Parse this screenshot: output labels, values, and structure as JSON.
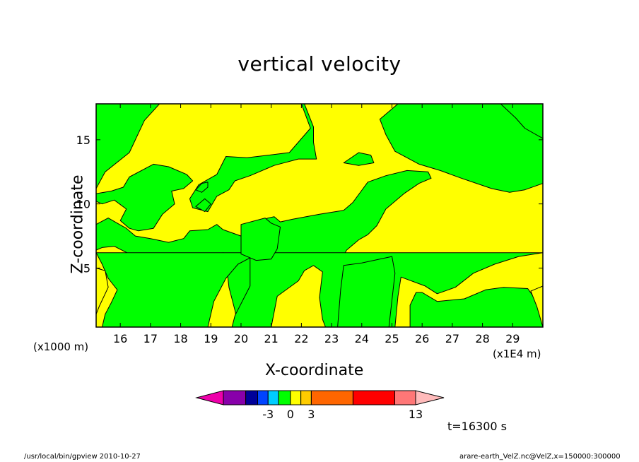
{
  "chart_data": {
    "type": "heatmap",
    "title": "vertical velocity",
    "xlabel": "X-coordinate",
    "ylabel": "Z-coordinate",
    "x_unit_left": "(x1000 m)",
    "x_unit_right": "(x1E4 m)",
    "xlim": [
      15.2,
      30.0
    ],
    "ylim": [
      0.4,
      17.8
    ],
    "x_ticks": [
      16,
      17,
      18,
      19,
      20,
      21,
      22,
      23,
      24,
      25,
      26,
      27,
      28,
      29
    ],
    "y_ticks": [
      5,
      10,
      15
    ],
    "colorbar": {
      "levels": [
        {
          "color": "#8800aa"
        },
        {
          "color": "#000099"
        },
        {
          "color": "#0044ff"
        },
        {
          "color": "#00ccff"
        },
        {
          "color": "#00ff00"
        },
        {
          "color": "#ffff00"
        },
        {
          "color": "#ffcc00"
        },
        {
          "color": "#ff6600"
        },
        {
          "color": "#ff0000"
        },
        {
          "color": "#ff7777"
        }
      ],
      "under_color": "#ee00aa",
      "over_color": "#ffbbbb",
      "labels": [
        {
          "text": "-3",
          "after_index": 2
        },
        {
          "text": "0",
          "after_index": 4
        },
        {
          "text": "3",
          "after_index": 6
        },
        {
          "text": "13",
          "after_index": 9
        }
      ]
    },
    "field_colors": {
      "negative_small": "#00ff00",
      "positive_small": "#ffff00"
    },
    "regions": [
      {
        "value": "negative_small",
        "points": [
          [
            15.2,
            17.8
          ],
          [
            17.3,
            17.8
          ],
          [
            16.8,
            16.5
          ],
          [
            16.3,
            14.0
          ],
          [
            15.5,
            12.5
          ],
          [
            15.2,
            11.2
          ]
        ]
      },
      {
        "value": "negative_small",
        "points": [
          [
            15.2,
            10.8
          ],
          [
            15.7,
            11.0
          ],
          [
            16.1,
            11.3
          ],
          [
            16.3,
            12.1
          ],
          [
            17.1,
            13.1
          ],
          [
            17.6,
            12.9
          ],
          [
            18.2,
            12.3
          ],
          [
            18.4,
            11.8
          ],
          [
            18.1,
            11.2
          ],
          [
            17.7,
            11.0
          ],
          [
            17.8,
            10.0
          ],
          [
            17.4,
            9.2
          ],
          [
            17.1,
            8.1
          ],
          [
            16.6,
            7.9
          ],
          [
            16.3,
            8.1
          ],
          [
            16.0,
            8.7
          ],
          [
            16.2,
            9.6
          ],
          [
            15.8,
            10.3
          ],
          [
            15.4,
            10.0
          ],
          [
            15.2,
            10.2
          ]
        ]
      },
      {
        "value": "negative_small",
        "points": [
          [
            18.1,
            17.8
          ],
          [
            22.0,
            17.8
          ],
          [
            22.3,
            15.9
          ],
          [
            21.6,
            14.0
          ],
          [
            20.2,
            13.6
          ],
          [
            19.5,
            13.7
          ],
          [
            19.2,
            12.3
          ],
          [
            18.6,
            11.5
          ],
          [
            18.3,
            10.4
          ],
          [
            18.4,
            9.7
          ],
          [
            18.9,
            9.4
          ],
          [
            19.2,
            10.6
          ],
          [
            19.6,
            11.1
          ],
          [
            19.8,
            11.8
          ],
          [
            20.3,
            12.2
          ],
          [
            21.1,
            13.0
          ],
          [
            21.9,
            13.5
          ],
          [
            22.5,
            13.5
          ],
          [
            22.4,
            14.8
          ],
          [
            22.4,
            16.0
          ],
          [
            22.1,
            17.8
          ]
        ]
      },
      {
        "value": "negative_small",
        "points": [
          [
            25.2,
            17.8
          ],
          [
            30.0,
            17.8
          ],
          [
            30.0,
            11.6
          ],
          [
            29.4,
            11.1
          ],
          [
            28.9,
            10.9
          ],
          [
            28.3,
            11.2
          ],
          [
            27.3,
            12.0
          ],
          [
            26.6,
            12.6
          ],
          [
            25.9,
            13.1
          ],
          [
            25.1,
            14.1
          ],
          [
            24.8,
            15.4
          ],
          [
            24.6,
            16.6
          ]
        ]
      },
      {
        "value": "negative_small",
        "points": [
          [
            28.6,
            17.8
          ],
          [
            30.0,
            17.8
          ],
          [
            30.0,
            15.1
          ],
          [
            29.4,
            15.9
          ],
          [
            29.1,
            16.7
          ]
        ]
      },
      {
        "value": "negative_small",
        "points": [
          [
            23.4,
            13.2
          ],
          [
            23.9,
            14.0
          ],
          [
            24.3,
            13.8
          ],
          [
            24.4,
            13.2
          ],
          [
            23.9,
            13.0
          ]
        ]
      },
      {
        "value": "negative_small",
        "points": [
          [
            15.2,
            8.4
          ],
          [
            15.6,
            8.9
          ],
          [
            15.9,
            8.5
          ],
          [
            16.2,
            8.1
          ],
          [
            16.5,
            7.5
          ],
          [
            17.0,
            7.3
          ],
          [
            17.6,
            7.0
          ],
          [
            18.1,
            7.3
          ],
          [
            18.3,
            7.9
          ],
          [
            18.9,
            8.0
          ],
          [
            19.2,
            8.4
          ],
          [
            19.4,
            8.0
          ],
          [
            20.0,
            7.5
          ],
          [
            20.1,
            8.3
          ],
          [
            20.9,
            8.9
          ],
          [
            21.1,
            9.0
          ],
          [
            21.3,
            8.6
          ],
          [
            21.7,
            8.8
          ],
          [
            22.6,
            9.2
          ],
          [
            23.4,
            9.5
          ],
          [
            23.7,
            10.1
          ],
          [
            24.2,
            11.7
          ],
          [
            24.8,
            12.2
          ],
          [
            25.5,
            12.6
          ],
          [
            26.2,
            12.5
          ],
          [
            26.3,
            12.0
          ],
          [
            25.9,
            11.6
          ],
          [
            25.4,
            10.8
          ],
          [
            24.8,
            9.6
          ],
          [
            24.5,
            8.3
          ],
          [
            24.2,
            7.6
          ],
          [
            23.9,
            7.2
          ],
          [
            23.5,
            6.4
          ],
          [
            23.3,
            5.6
          ],
          [
            23.1,
            5.2
          ],
          [
            22.5,
            5.7
          ],
          [
            22.1,
            5.1
          ],
          [
            21.6,
            4.5
          ],
          [
            21.1,
            4.2
          ],
          [
            20.6,
            3.4
          ],
          [
            20.4,
            2.6
          ],
          [
            20.3,
            1.7
          ],
          [
            20.1,
            0.4
          ],
          [
            19.9,
            0.4
          ],
          [
            19.8,
            1.7
          ],
          [
            19.6,
            3.5
          ],
          [
            19.5,
            5.6
          ],
          [
            19.4,
            6.2
          ],
          [
            18.9,
            5.1
          ],
          [
            18.6,
            4.4
          ],
          [
            17.8,
            4.6
          ],
          [
            17.1,
            4.8
          ],
          [
            16.7,
            5.4
          ],
          [
            16.3,
            6.1
          ],
          [
            15.8,
            6.7
          ],
          [
            15.4,
            6.6
          ],
          [
            15.2,
            6.4
          ]
        ]
      },
      {
        "value": "negative_small",
        "points": [
          [
            15.2,
            6.2
          ],
          [
            15.4,
            5.3
          ],
          [
            15.6,
            4.2
          ],
          [
            15.9,
            3.3
          ],
          [
            15.7,
            2.3
          ],
          [
            15.5,
            1.4
          ],
          [
            15.4,
            0.4
          ],
          [
            18.9,
            0.4
          ],
          [
            19.1,
            2.4
          ],
          [
            19.5,
            4.2
          ],
          [
            19.9,
            5.3
          ],
          [
            20.3,
            5.8
          ],
          [
            20.3,
            3.6
          ],
          [
            19.8,
            1.3
          ],
          [
            19.7,
            0.4
          ],
          [
            21.0,
            0.4
          ],
          [
            21.2,
            2.8
          ],
          [
            21.9,
            4.0
          ],
          [
            22.1,
            4.8
          ],
          [
            22.4,
            5.2
          ],
          [
            22.7,
            4.7
          ],
          [
            22.6,
            2.7
          ],
          [
            22.7,
            1.0
          ],
          [
            22.8,
            0.4
          ],
          [
            25.1,
            0.4
          ],
          [
            25.2,
            2.8
          ],
          [
            25.3,
            4.3
          ],
          [
            26.1,
            3.6
          ],
          [
            26.5,
            3.0
          ],
          [
            27.1,
            3.5
          ],
          [
            27.7,
            4.6
          ],
          [
            28.4,
            5.3
          ],
          [
            29.2,
            5.9
          ],
          [
            30.0,
            6.2
          ]
        ]
      },
      {
        "value": "negative_small",
        "points": [
          [
            20.0,
            8.4
          ],
          [
            20.8,
            8.9
          ],
          [
            21.0,
            8.5
          ],
          [
            21.3,
            8.2
          ],
          [
            21.2,
            6.5
          ],
          [
            21.0,
            5.7
          ],
          [
            20.5,
            5.6
          ],
          [
            20.0,
            6.1
          ],
          [
            20.0,
            7.0
          ]
        ]
      },
      {
        "value": "negative_small",
        "points": [
          [
            23.2,
            0.4
          ],
          [
            23.3,
            3.3
          ],
          [
            23.4,
            5.2
          ],
          [
            24.0,
            5.4
          ],
          [
            24.6,
            5.7
          ],
          [
            25.0,
            5.9
          ],
          [
            25.1,
            4.6
          ],
          [
            25.0,
            2.5
          ],
          [
            24.9,
            0.4
          ]
        ]
      },
      {
        "value": "negative_small",
        "points": [
          [
            25.6,
            0.4
          ],
          [
            25.6,
            2.1
          ],
          [
            25.8,
            3.1
          ],
          [
            26.0,
            3.1
          ],
          [
            26.5,
            2.4
          ],
          [
            27.4,
            2.6
          ],
          [
            28.1,
            3.3
          ],
          [
            28.7,
            3.5
          ],
          [
            29.5,
            3.4
          ],
          [
            29.8,
            2.4
          ],
          [
            30.0,
            2.2
          ],
          [
            30.0,
            0.4
          ]
        ]
      },
      {
        "value": "negative_small",
        "points": [
          [
            18.5,
            11.1
          ],
          [
            18.7,
            11.6
          ],
          [
            18.9,
            11.7
          ],
          [
            18.9,
            11.3
          ],
          [
            18.7,
            10.9
          ]
        ]
      },
      {
        "value": "negative_small",
        "points": [
          [
            18.5,
            9.8
          ],
          [
            18.8,
            10.4
          ],
          [
            19.0,
            10.0
          ],
          [
            18.8,
            9.4
          ]
        ]
      },
      {
        "value": "positive_small",
        "points": [
          [
            30.0,
            0.4
          ],
          [
            29.8,
            2.0
          ],
          [
            29.6,
            3.2
          ],
          [
            30.0,
            3.6
          ]
        ]
      },
      {
        "value": "positive_small",
        "points": [
          [
            15.2,
            5.0
          ],
          [
            15.5,
            4.8
          ],
          [
            15.6,
            3.5
          ],
          [
            15.3,
            2.0
          ],
          [
            15.2,
            1.4
          ]
        ]
      }
    ]
  },
  "time_label": "t=16300 s",
  "footer": {
    "left": "/usr/local/bin/gpview   2010-10-27",
    "right": "arare-earth_VelZ.nc@VelZ,x=150000:300000"
  }
}
